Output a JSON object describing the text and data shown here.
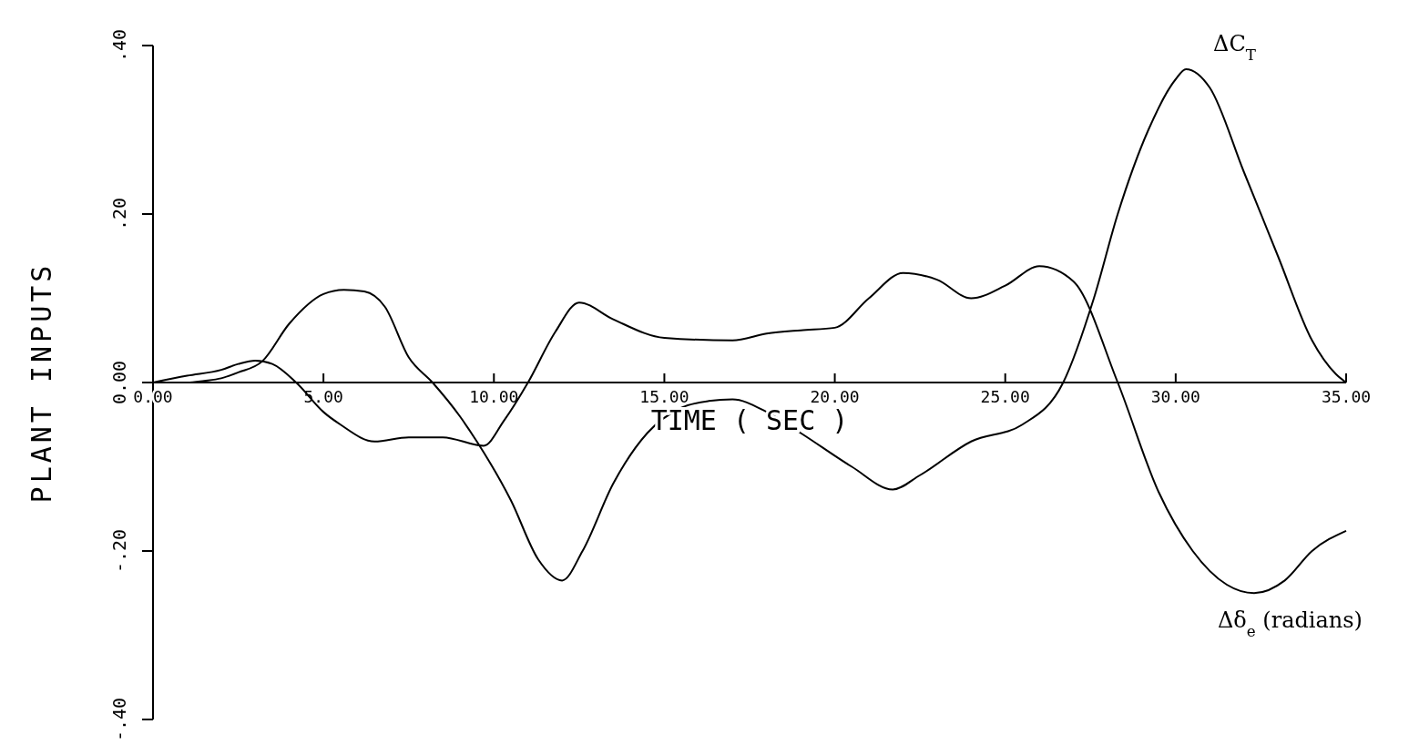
{
  "chart_data": {
    "type": "line",
    "xlabel": "TIME ( SEC )",
    "ylabel": "PLANT INPUTS",
    "xlim": [
      0,
      35
    ],
    "ylim": [
      -0.4,
      0.4
    ],
    "xticks": [
      {
        "value": 0,
        "label": "0.00"
      },
      {
        "value": 5,
        "label": "5.00"
      },
      {
        "value": 10,
        "label": "10.00"
      },
      {
        "value": 15,
        "label": "15.00"
      },
      {
        "value": 20,
        "label": "20.00"
      },
      {
        "value": 25,
        "label": "25.00"
      },
      {
        "value": 30,
        "label": "30.00"
      },
      {
        "value": 35,
        "label": "35.00"
      }
    ],
    "yticks": [
      {
        "value": -0.4,
        "label": "-.40"
      },
      {
        "value": -0.2,
        "label": "-.20"
      },
      {
        "value": 0,
        "label": "0.00"
      },
      {
        "value": 0.2,
        "label": ".20"
      },
      {
        "value": 0.4,
        "label": ".40"
      }
    ],
    "grid": false,
    "line_style": "solid",
    "marker": "none",
    "series": [
      {
        "name": "ΔC$_{T}$",
        "color": "#000000",
        "x": [
          0,
          1,
          1.5,
          2,
          2.5,
          3.2,
          4,
          5,
          5.6,
          6.2,
          6.8,
          7.5,
          8.2,
          9,
          9.5,
          10.5,
          11.3,
          12,
          12.6,
          13.5,
          14.5,
          15.5,
          16.3,
          17,
          18,
          19,
          20.5,
          21.7,
          22.5,
          24,
          25.5,
          26.7,
          27.6,
          28.3,
          29.2,
          30,
          30.3,
          31,
          32,
          33,
          34,
          34.7,
          35
        ],
        "values": [
          0,
          0,
          0.002,
          0.005,
          0.012,
          0.025,
          0.07,
          0.105,
          0.11,
          0.108,
          0.09,
          0.03,
          0,
          -0.04,
          -0.07,
          -0.14,
          -0.21,
          -0.235,
          -0.2,
          -0.12,
          -0.06,
          -0.03,
          -0.022,
          -0.02,
          -0.035,
          -0.06,
          -0.1,
          -0.127,
          -0.11,
          -0.07,
          -0.05,
          0,
          0.1,
          0.2,
          0.3,
          0.36,
          0.372,
          0.35,
          0.25,
          0.15,
          0.05,
          0.01,
          0
        ]
      },
      {
        "name": "Δδ$_{e}$ (radians)",
        "color": "#000000",
        "x": [
          0,
          1,
          2,
          2.5,
          3,
          3.5,
          4.2,
          5,
          5.5,
          6.5,
          7.5,
          8.5,
          9.7,
          10.3,
          11,
          11.8,
          12.5,
          13.5,
          15,
          17,
          18,
          19,
          20,
          21,
          22,
          23,
          24,
          25,
          26,
          27,
          28.3,
          29.5,
          30.5,
          31.5,
          32.3,
          33.2,
          34,
          35
        ],
        "values": [
          0,
          0.008,
          0.015,
          0.022,
          0.026,
          0.022,
          0,
          -0.035,
          -0.05,
          -0.07,
          -0.065,
          -0.065,
          -0.075,
          -0.045,
          0,
          0.06,
          0.095,
          0.075,
          0.053,
          0.05,
          0.058,
          0.062,
          0.065,
          0.1,
          0.13,
          0.122,
          0.1,
          0.115,
          0.138,
          0.12,
          0,
          -0.13,
          -0.2,
          -0.24,
          -0.25,
          -0.235,
          -0.2,
          -0.176
        ]
      }
    ]
  }
}
